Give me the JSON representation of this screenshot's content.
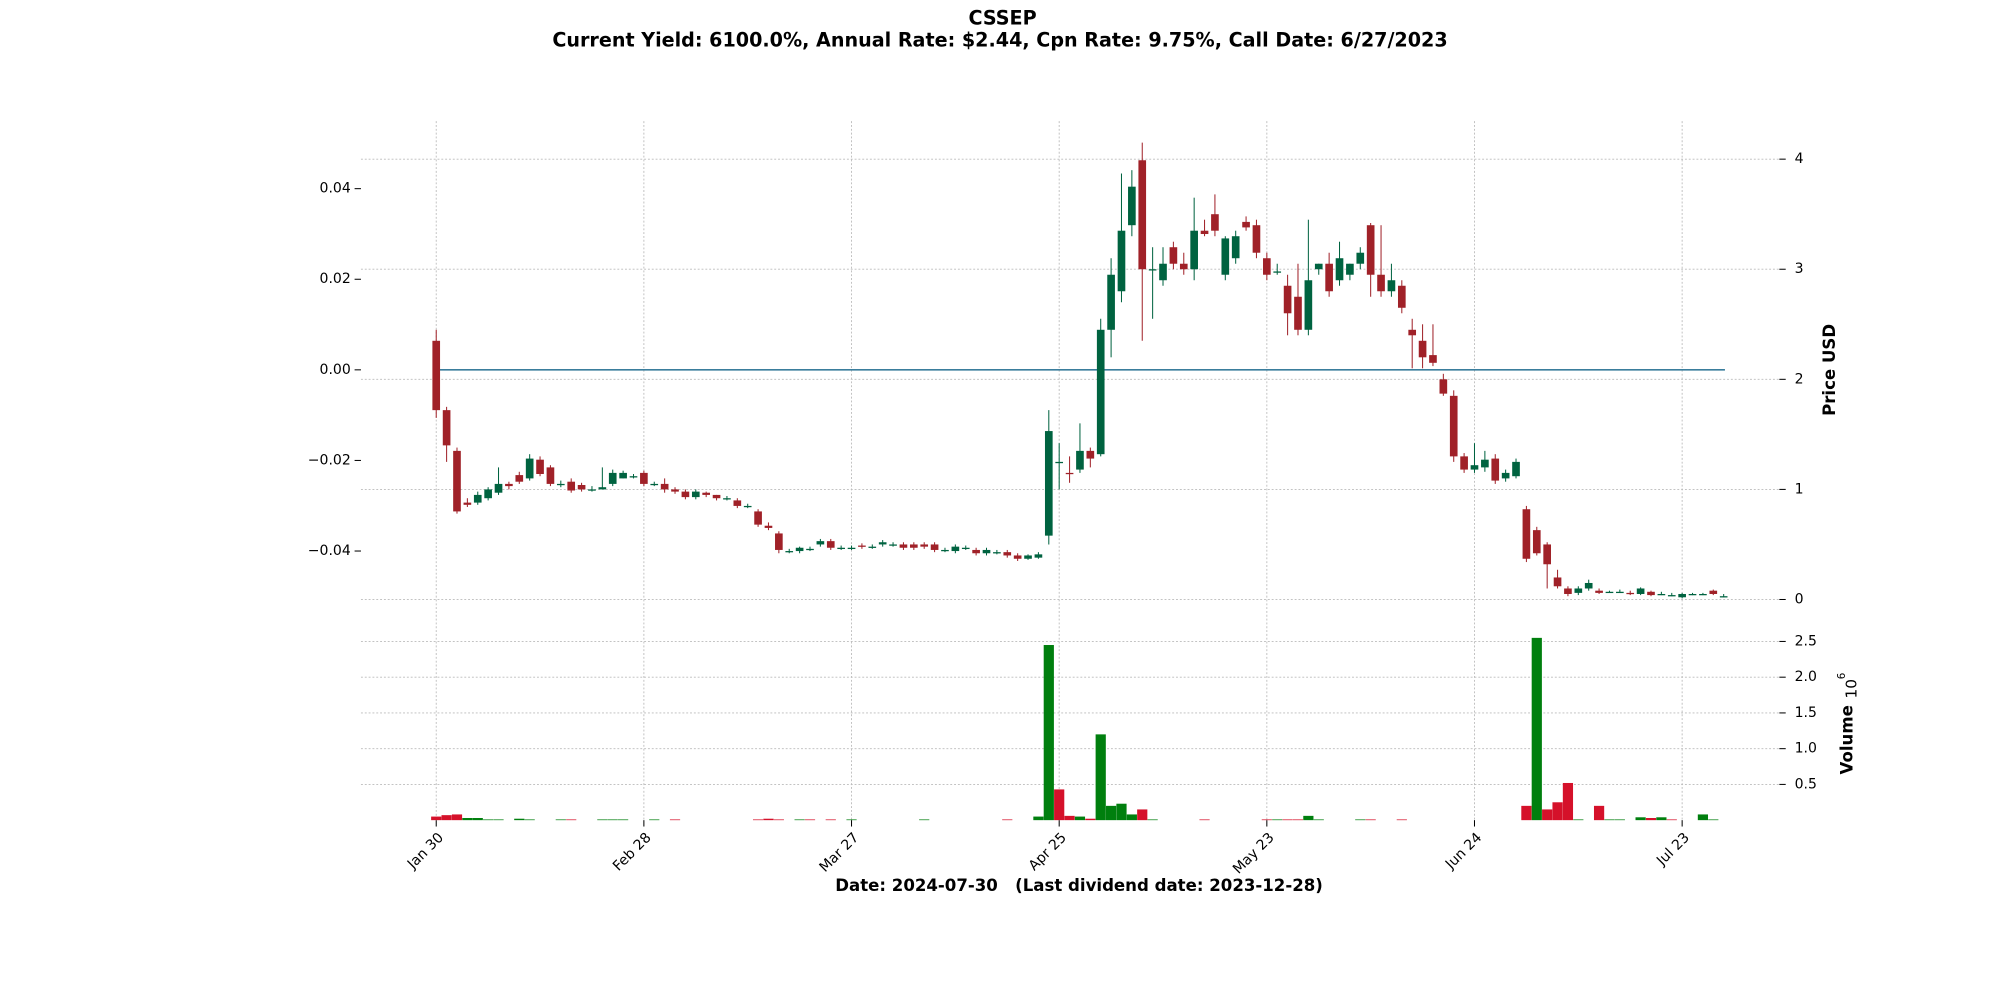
{
  "chart_data": {
    "type": "candlestick",
    "title": "CSSEP",
    "subtitle": "Current Yield: 6100.0%, Annual Rate: $2.44, Cpn Rate: 9.75%, Call Date: 6/27/2023",
    "xlabel": "Date: 2024-07-30   (Last dividend date: 2023-12-28)",
    "ylabel": "Price USD",
    "volume_label": "Volume",
    "volume_offset": {
      "base": "10",
      "exponent": "6"
    },
    "categories": [
      "Jan 30",
      null,
      null,
      null,
      null,
      null,
      null,
      null,
      null,
      null,
      null,
      null,
      null,
      null,
      null,
      null,
      null,
      null,
      null,
      null,
      "Feb 28",
      null,
      null,
      null,
      null,
      null,
      null,
      null,
      null,
      null,
      null,
      null,
      null,
      null,
      null,
      null,
      null,
      null,
      null,
      null,
      "Mar 27",
      null,
      null,
      null,
      null,
      null,
      null,
      null,
      null,
      null,
      null,
      null,
      null,
      null,
      null,
      null,
      null,
      null,
      null,
      null,
      "Apr 25",
      null,
      null,
      null,
      null,
      null,
      null,
      null,
      null,
      null,
      null,
      null,
      null,
      null,
      null,
      null,
      null,
      null,
      null,
      null,
      "May 23",
      null,
      null,
      null,
      null,
      null,
      null,
      null,
      null,
      null,
      null,
      null,
      null,
      null,
      null,
      null,
      null,
      null,
      null,
      null,
      "Jun 24",
      null,
      null,
      null,
      null,
      null,
      null,
      null,
      null,
      null,
      null,
      null,
      null,
      null,
      null,
      null,
      null,
      null,
      null,
      null,
      "Jul 23",
      null,
      null,
      null,
      null
    ],
    "open": [
      2.35,
      1.72,
      1.35,
      0.88,
      0.88,
      0.92,
      0.97,
      1.05,
      1.13,
      1.1,
      1.27,
      1.2,
      1.05,
      1.07,
      1.04,
      1.0,
      1.0,
      1.05,
      1.1,
      1.12,
      1.15,
      1.05,
      1.05,
      1.0,
      0.98,
      0.93,
      0.97,
      0.95,
      0.92,
      0.9,
      0.85,
      0.8,
      0.67,
      0.6,
      0.44,
      0.44,
      0.46,
      0.5,
      0.53,
      0.47,
      0.47,
      0.49,
      0.48,
      0.5,
      0.5,
      0.5,
      0.5,
      0.5,
      0.5,
      0.45,
      0.44,
      0.47,
      0.45,
      0.42,
      0.43,
      0.43,
      0.4,
      0.37,
      0.38,
      0.58,
      1.25,
      1.15,
      1.18,
      1.35,
      1.32,
      2.45,
      2.8,
      3.4,
      3.99,
      3.0,
      2.9,
      3.2,
      3.05,
      3.0,
      3.35,
      3.5,
      2.95,
      3.1,
      3.43,
      3.4,
      3.1,
      2.98,
      2.85,
      2.75,
      2.45,
      3.0,
      3.05,
      2.9,
      2.95,
      3.05,
      3.4,
      2.95,
      2.8,
      2.85,
      2.45,
      2.35,
      2.22,
      2.0,
      1.85,
      1.3,
      1.18,
      1.2,
      1.28,
      1.1,
      1.12,
      0.82,
      0.63,
      0.5,
      0.2,
      0.1,
      0.06,
      0.1,
      0.08,
      0.07,
      0.07,
      0.06,
      0.05,
      0.07,
      0.05,
      0.04,
      0.02,
      0.05,
      0.05,
      0.08,
      0.03
    ],
    "high": [
      2.45,
      1.75,
      1.38,
      0.92,
      0.98,
      1.02,
      1.2,
      1.07,
      1.16,
      1.32,
      1.3,
      1.22,
      1.08,
      1.1,
      1.06,
      1.03,
      1.2,
      1.18,
      1.17,
      1.14,
      1.17,
      1.07,
      1.1,
      1.02,
      1.0,
      1.0,
      0.98,
      0.95,
      0.94,
      0.92,
      0.87,
      0.82,
      0.7,
      0.62,
      0.46,
      0.48,
      0.48,
      0.55,
      0.55,
      0.49,
      0.49,
      0.51,
      0.5,
      0.54,
      0.52,
      0.52,
      0.52,
      0.52,
      0.52,
      0.47,
      0.5,
      0.49,
      0.47,
      0.47,
      0.45,
      0.45,
      0.42,
      0.41,
      0.43,
      1.72,
      1.42,
      1.3,
      1.6,
      1.38,
      2.55,
      3.1,
      3.87,
      3.9,
      4.15,
      3.2,
      3.2,
      3.25,
      3.15,
      3.65,
      3.45,
      3.68,
      3.3,
      3.35,
      3.48,
      3.45,
      3.15,
      3.05,
      2.95,
      3.05,
      3.45,
      3.05,
      3.15,
      3.25,
      3.05,
      3.2,
      3.42,
      3.4,
      3.05,
      2.9,
      2.55,
      2.5,
      2.5,
      2.05,
      1.9,
      1.33,
      1.42,
      1.35,
      1.32,
      1.18,
      1.28,
      0.85,
      0.66,
      0.52,
      0.27,
      0.12,
      0.12,
      0.18,
      0.1,
      0.08,
      0.09,
      0.08,
      0.11,
      0.08,
      0.07,
      0.06,
      0.06,
      0.06,
      0.06,
      0.09,
      0.05
    ],
    "low": [
      1.65,
      1.25,
      0.78,
      0.84,
      0.86,
      0.9,
      0.95,
      1.0,
      1.05,
      1.08,
      1.12,
      1.03,
      1.02,
      0.97,
      0.98,
      0.98,
      1.0,
      1.03,
      1.1,
      1.1,
      1.03,
      1.03,
      0.97,
      0.96,
      0.91,
      0.91,
      0.93,
      0.9,
      0.9,
      0.83,
      0.83,
      0.66,
      0.63,
      0.42,
      0.42,
      0.42,
      0.44,
      0.48,
      0.45,
      0.45,
      0.45,
      0.46,
      0.46,
      0.48,
      0.48,
      0.45,
      0.45,
      0.46,
      0.43,
      0.43,
      0.42,
      0.45,
      0.4,
      0.4,
      0.41,
      0.38,
      0.35,
      0.36,
      0.37,
      0.5,
      1.0,
      1.06,
      1.15,
      1.2,
      1.3,
      2.2,
      2.7,
      3.3,
      2.35,
      2.55,
      2.85,
      3.0,
      2.95,
      2.9,
      3.3,
      3.3,
      2.9,
      3.05,
      3.35,
      3.1,
      2.9,
      2.95,
      2.4,
      2.4,
      2.4,
      2.95,
      2.75,
      2.85,
      2.9,
      3.0,
      2.75,
      2.75,
      2.75,
      2.6,
      2.1,
      2.1,
      2.12,
      1.85,
      1.25,
      1.15,
      1.15,
      1.16,
      1.05,
      1.07,
      1.1,
      0.34,
      0.4,
      0.1,
      0.1,
      0.03,
      0.04,
      0.08,
      0.05,
      0.06,
      0.06,
      0.04,
      0.04,
      0.03,
      0.04,
      0.03,
      0.01,
      0.04,
      0.04,
      0.04,
      0.02
    ],
    "close": [
      1.72,
      1.4,
      0.8,
      0.86,
      0.95,
      1.0,
      1.05,
      1.03,
      1.07,
      1.28,
      1.14,
      1.05,
      1.05,
      0.99,
      1.0,
      1.0,
      1.02,
      1.15,
      1.15,
      1.12,
      1.05,
      1.05,
      1.0,
      0.98,
      0.93,
      0.98,
      0.95,
      0.92,
      0.92,
      0.85,
      0.85,
      0.68,
      0.65,
      0.45,
      0.44,
      0.47,
      0.46,
      0.53,
      0.47,
      0.47,
      0.47,
      0.48,
      0.48,
      0.52,
      0.5,
      0.47,
      0.47,
      0.48,
      0.45,
      0.45,
      0.48,
      0.47,
      0.42,
      0.45,
      0.43,
      0.4,
      0.37,
      0.4,
      0.41,
      1.53,
      1.25,
      1.14,
      1.35,
      1.28,
      2.45,
      2.95,
      3.35,
      3.75,
      3.0,
      3.0,
      3.05,
      3.05,
      3.0,
      3.35,
      3.32,
      3.35,
      3.28,
      3.3,
      3.38,
      3.15,
      2.95,
      2.98,
      2.6,
      2.45,
      2.9,
      3.05,
      2.8,
      3.1,
      3.05,
      3.15,
      2.95,
      2.8,
      2.9,
      2.65,
      2.4,
      2.2,
      2.15,
      1.87,
      1.3,
      1.18,
      1.22,
      1.27,
      1.08,
      1.15,
      1.25,
      0.37,
      0.42,
      0.32,
      0.12,
      0.05,
      0.1,
      0.15,
      0.06,
      0.07,
      0.07,
      0.05,
      0.1,
      0.04,
      0.05,
      0.04,
      0.05,
      0.05,
      0.05,
      0.05,
      0.03
    ],
    "volume": [
      0.05,
      0.07,
      0.08,
      0.03,
      0.03,
      0.01,
      0.01,
      0,
      0.02,
      0.01,
      0,
      0,
      0.01,
      0.01,
      0,
      0,
      0.01,
      0.01,
      0.01,
      0,
      0,
      0.01,
      0,
      0.01,
      0,
      0,
      0,
      0,
      0,
      0,
      0,
      0.01,
      0.02,
      0.01,
      0,
      0.01,
      0.01,
      0,
      0.01,
      0,
      0.01,
      0,
      0,
      0,
      0,
      0,
      0,
      0.01,
      0,
      0,
      0,
      0,
      0,
      0,
      0,
      0.01,
      0,
      0,
      0.05,
      2.45,
      0.43,
      0.06,
      0.05,
      0.02,
      1.2,
      0.2,
      0.23,
      0.08,
      0.15,
      0.01,
      0,
      0,
      0,
      0,
      0.01,
      0,
      0,
      0,
      0,
      0,
      0.01,
      0.01,
      0.01,
      0.01,
      0.06,
      0.01,
      0,
      0,
      0,
      0.01,
      0.01,
      0,
      0,
      0.01,
      0,
      0,
      0,
      0,
      0,
      0,
      0,
      0,
      0,
      0,
      0,
      0.2,
      2.55,
      0.15,
      0.25,
      0.52,
      0.01,
      0,
      0.2,
      0.01,
      0.01,
      0,
      0.04,
      0.03,
      0.04,
      0.01,
      0,
      0,
      0.08,
      0.01,
      0
    ],
    "up_color": "#006340",
    "down_color": "#a02128",
    "volume_up_color": "#007f0e",
    "volume_down_color": "#d5112a",
    "ylim": [
      0,
      4.345
    ],
    "yticks": [
      0,
      1,
      2,
      3,
      4
    ],
    "y2lim": [
      -0.0507,
      0.0549
    ],
    "y2ticks": [
      {
        "value": -0.04,
        "label": "−0.04"
      },
      {
        "value": -0.02,
        "label": "−0.02"
      },
      {
        "value": 0,
        "label": "0.00"
      },
      0.02,
      0.04
    ],
    "yield_line": {
      "value": 0,
      "axis": "y2",
      "color": "#3a7d9c"
    },
    "volume_ylim": [
      0,
      2.73
    ],
    "volume_ticks": [
      0.5,
      {
        "value": 1.0,
        "label": "1.0"
      },
      1.5,
      {
        "value": 2.0,
        "label": "2.0"
      },
      2.5
    ],
    "grid": true
  }
}
